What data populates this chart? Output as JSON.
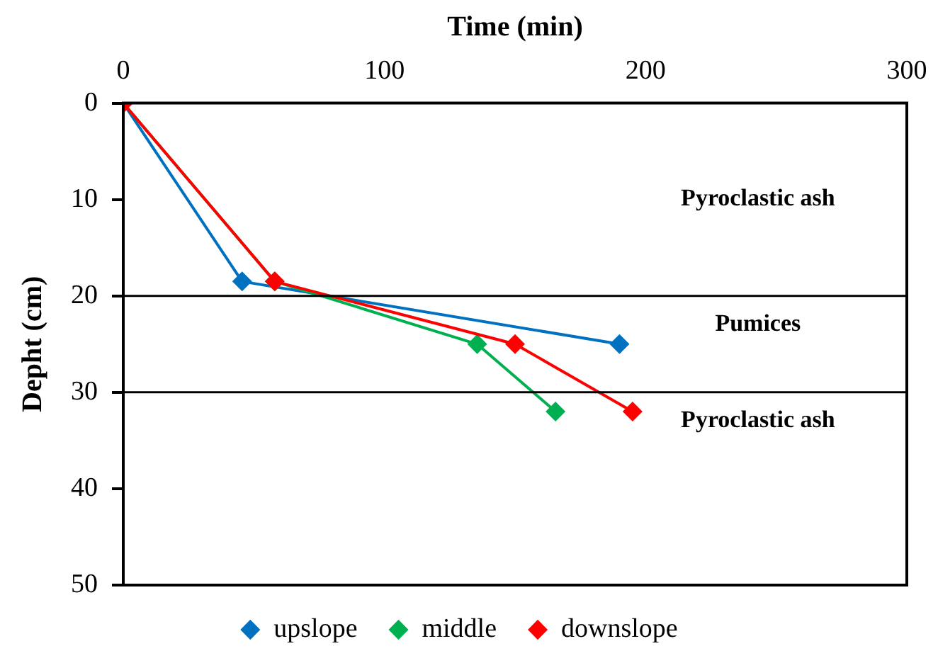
{
  "chart_data": {
    "type": "line",
    "xlabel": "Time (min)",
    "ylabel": "Depht (cm)",
    "xlim": [
      0,
      300
    ],
    "xticks": [
      0,
      100,
      200,
      300
    ],
    "ylim": [
      50,
      0
    ],
    "yticks": [
      0,
      10,
      20,
      30,
      40,
      50
    ],
    "series": [
      {
        "name": "upslope",
        "color": "#0070c0",
        "x": [
          0,
          45.5,
          190
        ],
        "values": [
          0,
          18.5,
          25
        ]
      },
      {
        "name": "middle",
        "color": "#00b050",
        "x": [
          0,
          58,
          135.5,
          165.5
        ],
        "values": [
          0,
          18.5,
          25,
          32
        ]
      },
      {
        "name": "downslope",
        "color": "#ff0000",
        "x": [
          0,
          58,
          150,
          195
        ],
        "values": [
          0,
          18.5,
          25,
          32
        ]
      }
    ],
    "ref_lines": [
      {
        "axis": "y",
        "value": 20,
        "color": "#000000"
      },
      {
        "axis": "y",
        "value": 30,
        "color": "#000000"
      }
    ],
    "annotations": [
      "Pyroclastic ash",
      "Pumices",
      "Pyroclastic ash"
    ],
    "grid": false,
    "legend": "bottom",
    "marker": "diamond",
    "line_style": "solid"
  }
}
